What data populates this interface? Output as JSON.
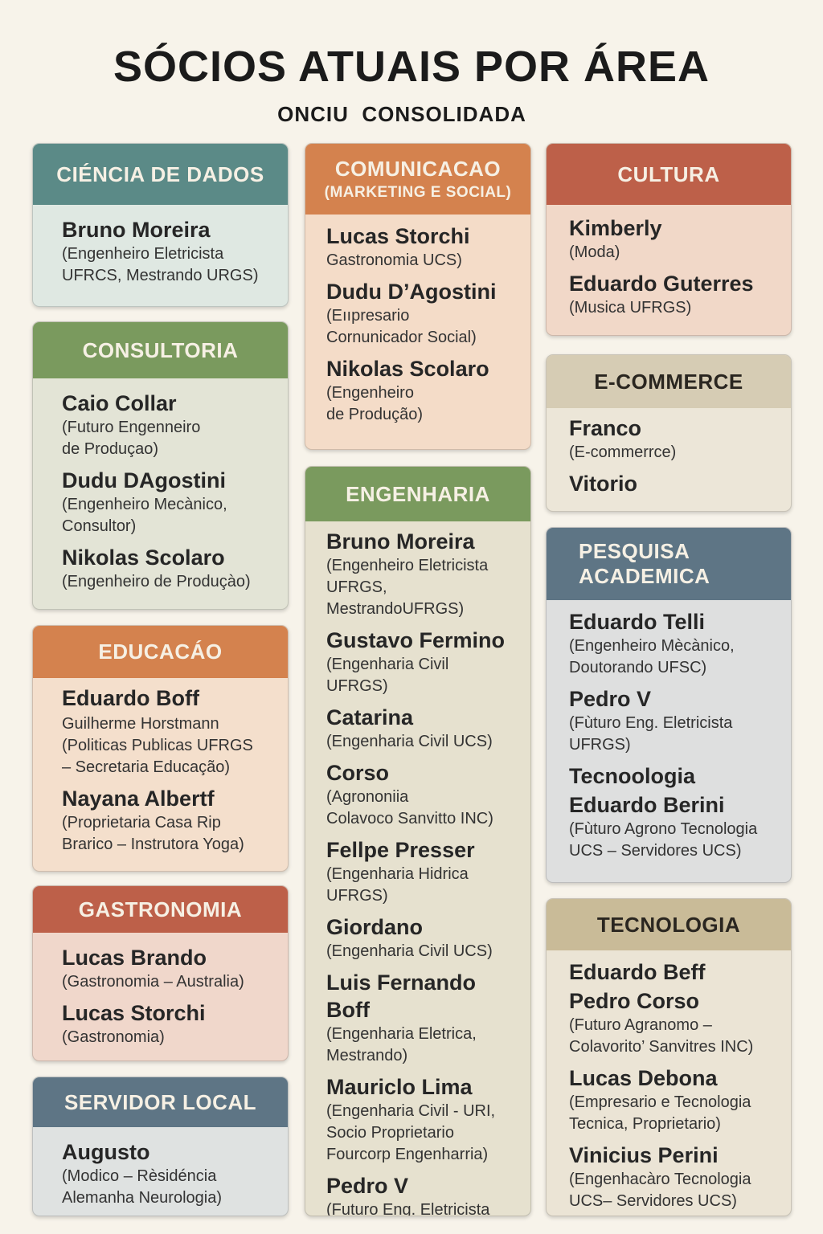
{
  "page": {
    "title": "SÓCIOS ATUAIS POR ÁREA",
    "subtitle": "ONCIU  CONSOLIDADA"
  },
  "colors": {
    "background": "#f7f3ea",
    "teal": "#5b8a87",
    "green": "#7a9a5e",
    "orange": "#d4824e",
    "red": "#bd6049",
    "sand": "#d6ccb4",
    "slate": "#5e7585",
    "khaki": "#c9bb98"
  },
  "cards": {
    "ciencia_dados": {
      "title": "CIÉNCIA DE DADOS",
      "entries": [
        {
          "name": "Bruno Moreira",
          "desc": "(Engenheiro Eletricista\nUFRCS, Mestrando URGS)"
        }
      ]
    },
    "consultoria": {
      "title": "CONSULTORIA",
      "entries": [
        {
          "name": "Caio Collar",
          "desc": "(Futuro Engenneiro\nde Produçao)"
        },
        {
          "name": "Dudu DAgostini",
          "desc": "(Engenheiro Mecànico,\nConsultor)"
        },
        {
          "name": "Nikolas Scolaro",
          "desc": "(Engenheiro de Produçào)"
        }
      ]
    },
    "educacao": {
      "title": "EDUCACÁO",
      "entries": [
        {
          "name": "Eduardo Boff",
          "desc": ""
        },
        {
          "name": "",
          "desc": "Guilherme Horstmann\n(Politicas Publicas UFRGS\n– Secretaria Educação)"
        },
        {
          "name": "Nayana Albertf",
          "desc": "(Proprietaria Casa Rip\nBrarico – Instrutora Yoga)"
        }
      ]
    },
    "gastronomia": {
      "title": "GASTRONOMIA",
      "entries": [
        {
          "name": "Lucas Brando",
          "desc": "(Gastronomia – Australia)"
        },
        {
          "name": "Lucas Storchi",
          "desc": "(Gastronomia)"
        }
      ]
    },
    "servidor_local": {
      "title": "SERVIDOR LOCAL",
      "entries": [
        {
          "name": "Augusto",
          "desc": "(Modico – Rèsidéncia\nAlemanha Neurologia)"
        }
      ]
    },
    "comunicacao": {
      "title": "COMUNICACAO",
      "subtitle": "(MARKETING E SOCIAL)",
      "entries": [
        {
          "name": "Lucas Storchi",
          "desc": "Gastronomia UCS)"
        },
        {
          "name": "Dudu D’Agostini",
          "desc": "(Eııpresario\nCornunicador Social)"
        },
        {
          "name": "Nikolas Scolaro",
          "desc": "(Engenheiro\nde Produção)"
        }
      ]
    },
    "engenharia": {
      "title": "ENGENHARIA",
      "entries": [
        {
          "name": "Bruno Moreira",
          "desc": "(Engenheiro Eletricista\nUFRGS, MestrandoUFRGS)"
        },
        {
          "name": "Gustavo Fermino",
          "desc": "(Engenharia Civil\nUFRGS)"
        },
        {
          "name": "Catarina",
          "desc": "(Engenharia Civil UCS)"
        },
        {
          "name": "Corso",
          "desc": "(Agrononiia\nColavoco Sanvitto INC)"
        },
        {
          "name": "Fellpe Presser",
          "desc": "(Engenharia Hidrica\nUFRGS)"
        },
        {
          "name": "Giordano",
          "desc": "(Engenharia Civil UCS)"
        },
        {
          "name": "Luis Fernando Boff",
          "desc": "(Engenharia Eletrica,\nMestrando)"
        },
        {
          "name": "Mauriclo Lima",
          "desc": "(Engenharia Civil - URI,\nSocio Proprietario\nFourcorp Engenharria)"
        },
        {
          "name": "Pedro V",
          "desc": "(Futuro Eng. Eletricista\nUFRGS)"
        }
      ]
    },
    "cultura": {
      "title": "CULTURA",
      "entries": [
        {
          "name": "Kimberly",
          "desc": "(Moda)"
        },
        {
          "name": "Eduardo Guterres",
          "desc": "(Musica UFRGS)"
        }
      ]
    },
    "ecommerce": {
      "title": "E-COMMERCE",
      "entries": [
        {
          "name": "Franco",
          "desc": "(E-commerrce)"
        },
        {
          "name": "Vitorio",
          "desc": ""
        }
      ]
    },
    "pesquisa": {
      "title": "PESQUISA",
      "title2": "ACADEMICA",
      "entries": [
        {
          "name": "Eduardo Telli",
          "desc": "(Engenheiro Mècànico,\nDoutorando UFSC)"
        },
        {
          "name": "Pedro V",
          "desc": "(Fùturo Eng. Eletricista\nUFRGS)"
        },
        {
          "name": "Tecnoologia",
          "desc": ""
        },
        {
          "name": "Eduardo Berini",
          "desc": "(Fùturo Agrono Tecnologia\nUCS – Servidores UCS)"
        }
      ]
    },
    "tecnologia": {
      "title": "TECNOLOGIA",
      "entries": [
        {
          "name": "Eduardo Beff",
          "desc": ""
        },
        {
          "name": "Pedro Corso",
          "desc": "(Futuro Agranomo –\nColavorito’ Sanvitres INC)"
        },
        {
          "name": "Lucas Debona",
          "desc": "(Empresario e Tecnologia\nTecnica, Proprietario)"
        },
        {
          "name": "Vinicius Perini",
          "desc": "(Engenhacàro Tecnologia\nUCS– Servidores UCS)"
        }
      ]
    }
  }
}
